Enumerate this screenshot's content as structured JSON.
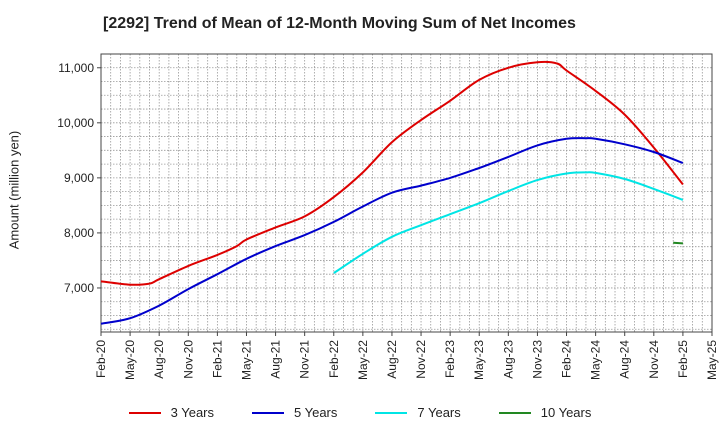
{
  "chart_data": {
    "type": "line",
    "title": "[2292]  Trend of Mean of 12-Month Moving Sum of Net Incomes",
    "ylabel": "Amount (million yen)",
    "xlabel": "",
    "ylim": [
      6200,
      11250
    ],
    "yticks": [
      7000,
      8000,
      9000,
      10000,
      11000
    ],
    "ytick_labels": [
      "7,000",
      "8,000",
      "9,000",
      "10,000",
      "11,000"
    ],
    "x_start": "Feb-20",
    "x_end": "May-25",
    "xtick_labels": [
      "Feb-20",
      "May-20",
      "Aug-20",
      "Nov-20",
      "Feb-21",
      "May-21",
      "Aug-21",
      "Nov-21",
      "Feb-22",
      "May-22",
      "Aug-22",
      "Nov-22",
      "Feb-23",
      "May-23",
      "Aug-23",
      "Nov-23",
      "Feb-24",
      "May-24",
      "Aug-24",
      "Nov-24",
      "Feb-25",
      "May-25"
    ],
    "grid": true,
    "legend_position": "bottom",
    "series": [
      {
        "name": "3 Years",
        "color": "#dd0000",
        "x": [
          "Feb-20",
          "May-20",
          "Jul-20",
          "Aug-20",
          "Nov-20",
          "Feb-21",
          "Apr-21",
          "May-21",
          "Aug-21",
          "Nov-21",
          "Feb-22",
          "May-22",
          "Aug-22",
          "Nov-22",
          "Feb-23",
          "May-23",
          "Aug-23",
          "Nov-23",
          "Jan-24",
          "Feb-24",
          "May-24",
          "Aug-24",
          "Nov-24",
          "Feb-25"
        ],
        "values": [
          7120,
          7060,
          7080,
          7160,
          7400,
          7600,
          7760,
          7880,
          8100,
          8300,
          8650,
          9100,
          9650,
          10050,
          10400,
          10780,
          11000,
          11100,
          11080,
          10950,
          10580,
          10150,
          9550,
          8880
        ]
      },
      {
        "name": "5 Years",
        "color": "#0000cc",
        "x": [
          "Feb-20",
          "May-20",
          "Aug-20",
          "Nov-20",
          "Feb-21",
          "May-21",
          "Aug-21",
          "Nov-21",
          "Feb-22",
          "May-22",
          "Aug-22",
          "Nov-22",
          "Feb-23",
          "May-23",
          "Aug-23",
          "Nov-23",
          "Feb-24",
          "Apr-24",
          "May-24",
          "Aug-24",
          "Nov-24",
          "Feb-25"
        ],
        "values": [
          6350,
          6450,
          6680,
          6980,
          7250,
          7530,
          7760,
          7960,
          8200,
          8480,
          8730,
          8860,
          9000,
          9180,
          9380,
          9590,
          9710,
          9720,
          9710,
          9610,
          9470,
          9270
        ]
      },
      {
        "name": "7 Years",
        "color": "#00e5e5",
        "x": [
          "Feb-22",
          "May-22",
          "Aug-22",
          "Nov-22",
          "Feb-23",
          "May-23",
          "Aug-23",
          "Nov-23",
          "Feb-24",
          "Apr-24",
          "May-24",
          "Aug-24",
          "Nov-24",
          "Feb-25"
        ],
        "values": [
          7270,
          7620,
          7930,
          8140,
          8340,
          8540,
          8760,
          8960,
          9080,
          9100,
          9090,
          8980,
          8800,
          8600
        ]
      },
      {
        "name": "10 Years",
        "color": "#228822",
        "x": [
          "Jan-25",
          "Feb-25"
        ],
        "values": [
          7820,
          7810
        ]
      }
    ]
  }
}
